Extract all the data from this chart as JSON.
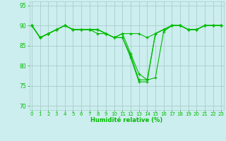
{
  "x": [
    0,
    1,
    2,
    3,
    4,
    5,
    6,
    7,
    8,
    9,
    10,
    11,
    12,
    13,
    14,
    15,
    16,
    17,
    18,
    19,
    20,
    21,
    22,
    23
  ],
  "lines": [
    [
      90,
      87,
      88,
      89,
      90,
      89,
      89,
      89,
      89,
      88,
      87,
      87,
      82,
      76,
      76,
      88,
      89,
      90,
      90,
      89,
      89,
      90,
      90,
      90
    ],
    [
      90,
      87,
      88,
      89,
      90,
      89,
      89,
      89,
      89,
      88,
      87,
      87,
      82.5,
      76.5,
      76.5,
      88,
      89,
      90,
      90,
      89,
      89,
      90,
      90,
      90
    ],
    [
      90,
      87,
      88,
      89,
      90,
      89,
      89,
      89,
      88,
      88,
      87,
      88,
      83,
      78,
      76.5,
      77,
      88.5,
      90,
      90,
      89,
      89,
      90,
      90,
      90
    ],
    [
      90,
      87,
      88,
      89,
      90,
      89,
      89,
      89,
      89,
      88,
      87,
      88,
      88,
      88,
      87,
      88,
      89,
      90,
      90,
      89,
      89,
      90,
      90,
      90
    ]
  ],
  "line_color": "#00bb00",
  "bg_color": "#cceeee",
  "grid_color": "#aacccc",
  "xlabel": "Humidité relative (%)",
  "ylim": [
    69,
    96
  ],
  "xlim": [
    -0.3,
    23.3
  ],
  "yticks": [
    70,
    75,
    80,
    85,
    90,
    95
  ],
  "xticks": [
    0,
    1,
    2,
    3,
    4,
    5,
    6,
    7,
    8,
    9,
    10,
    11,
    12,
    13,
    14,
    15,
    16,
    17,
    18,
    19,
    20,
    21,
    22,
    23
  ]
}
